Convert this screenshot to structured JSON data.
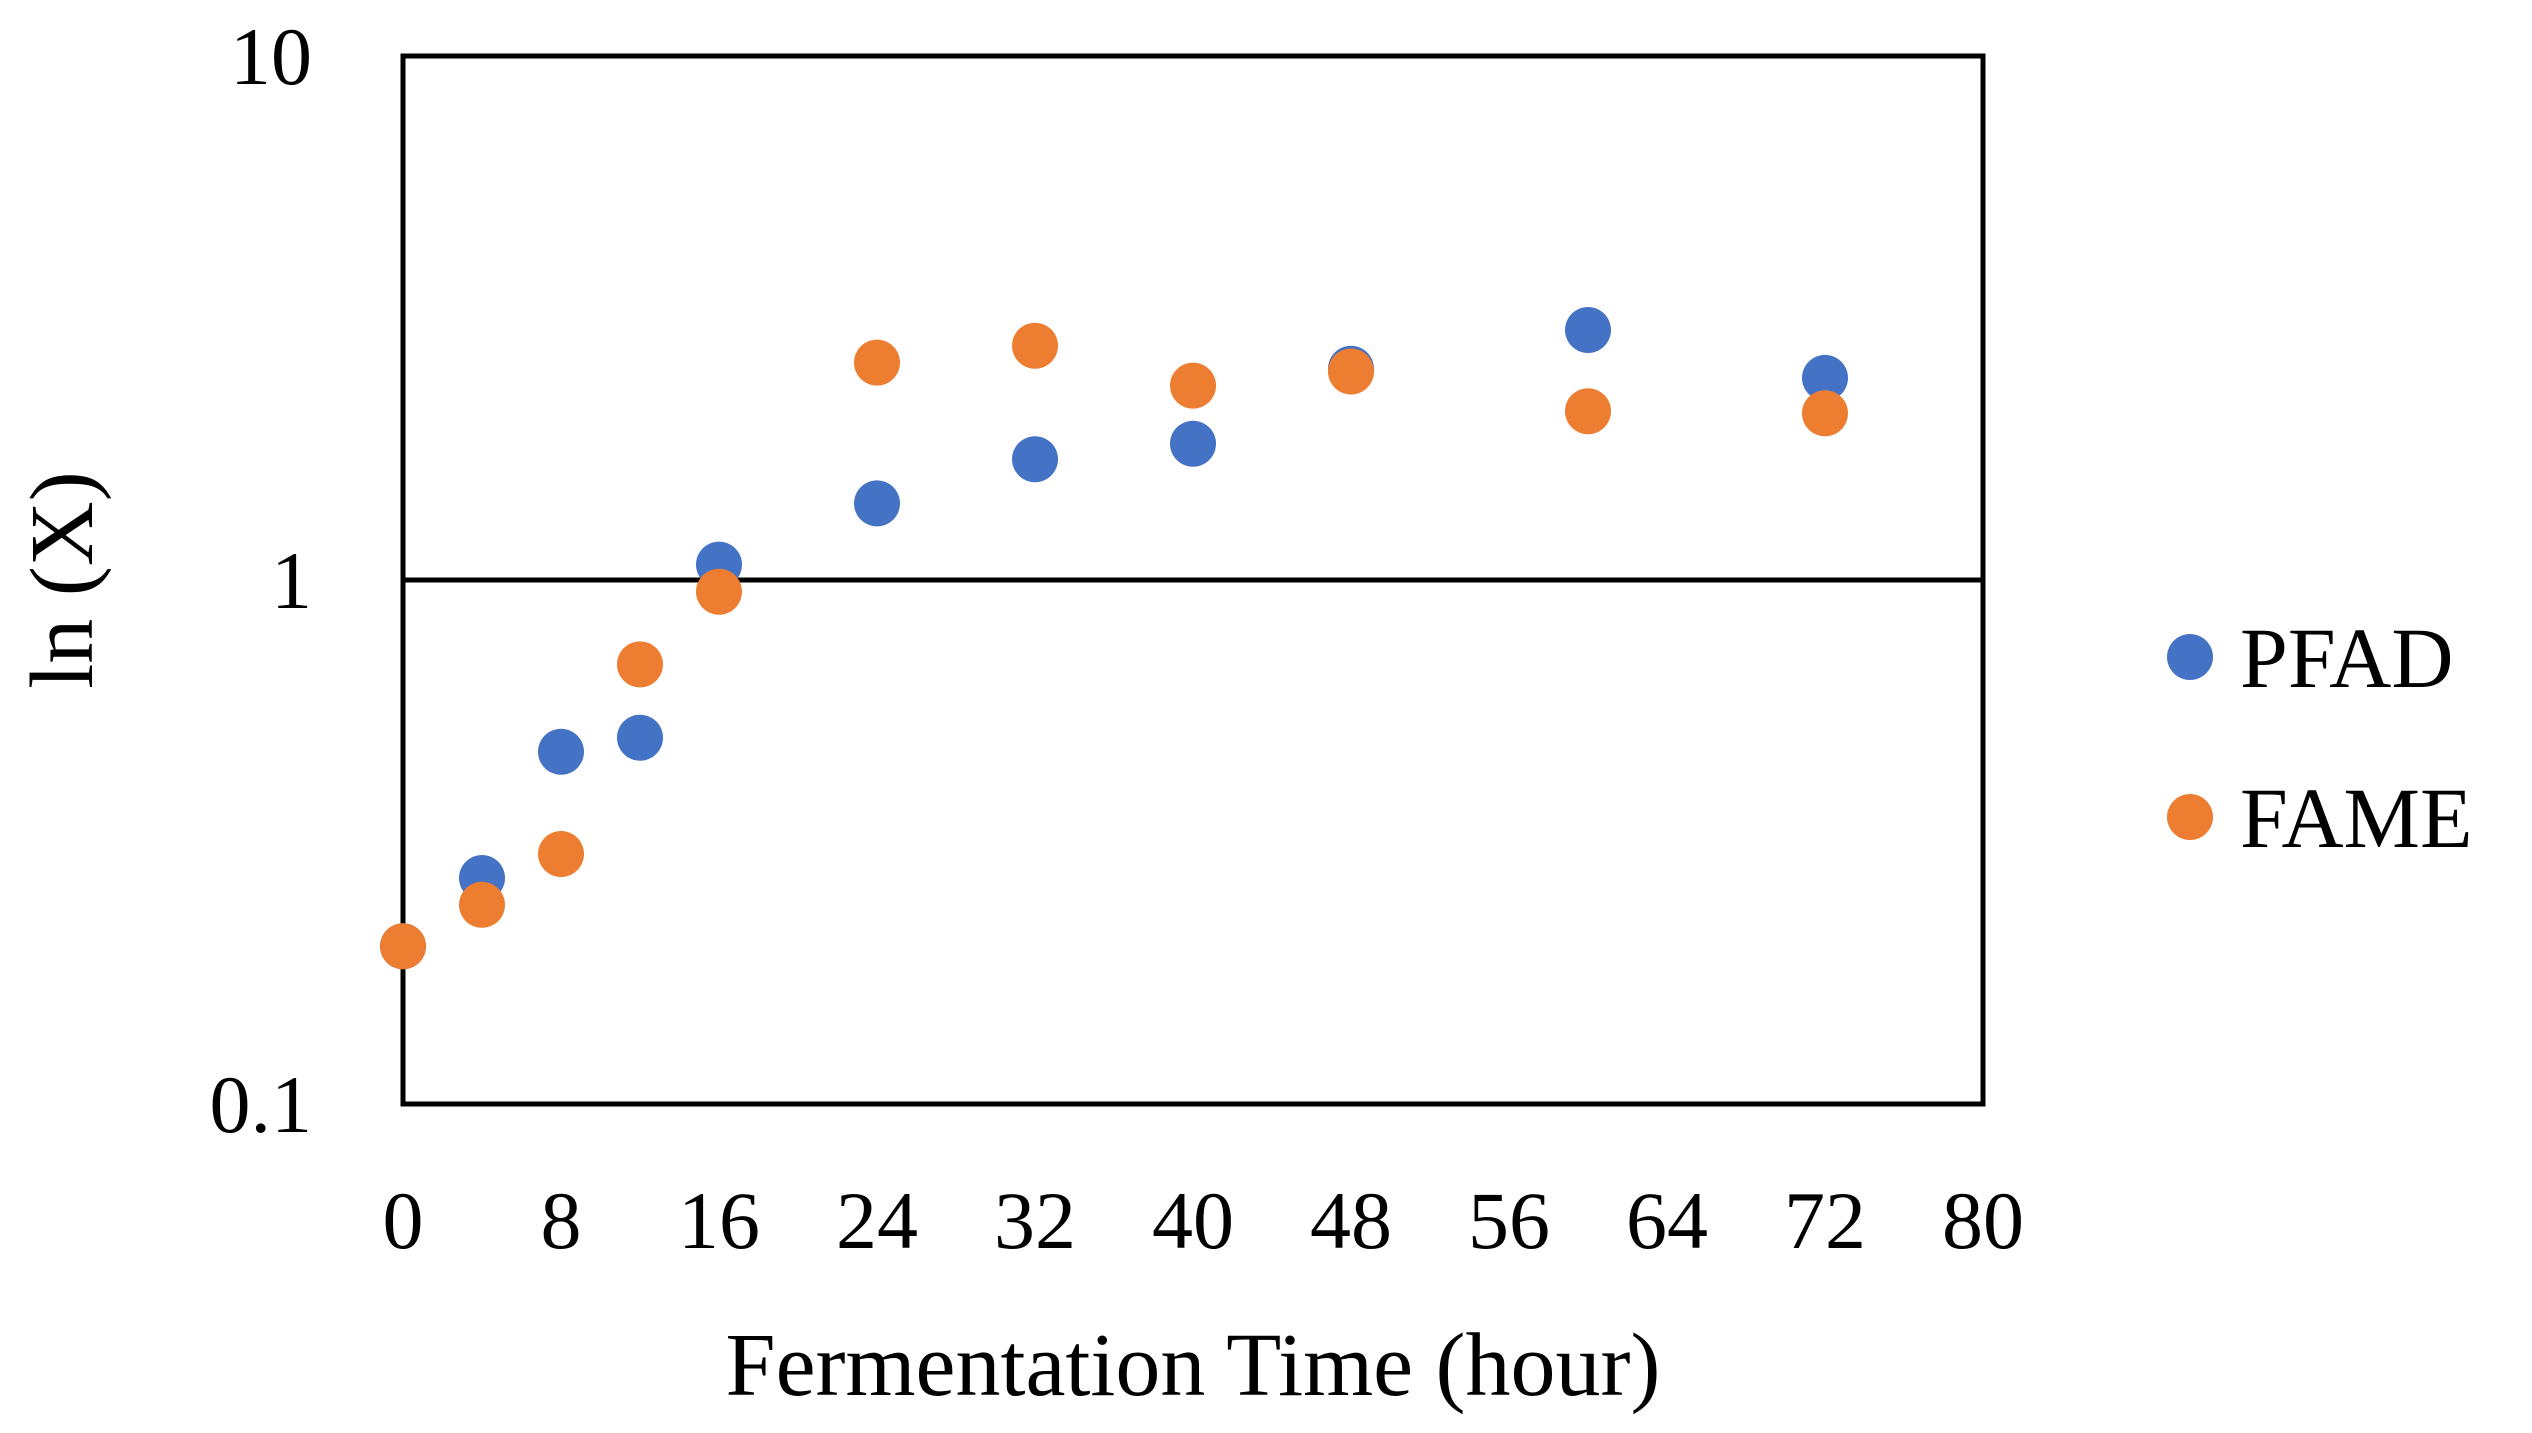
{
  "chart_data": {
    "type": "scatter",
    "title": "",
    "xlabel": "Fermentation Time (hour)",
    "ylabel": "ln (X)",
    "xlim": [
      0,
      80
    ],
    "ylim": [
      0.1,
      10
    ],
    "yscale": "log",
    "xticks": [
      "0",
      "8",
      "16",
      "24",
      "32",
      "40",
      "48",
      "56",
      "64",
      "72",
      "80"
    ],
    "yticks": [
      "0.1",
      "1",
      "10"
    ],
    "grid": "horizontal major gridline at 1",
    "legend_position": "right",
    "series": [
      {
        "name": "PFAD",
        "color": "#4472C4",
        "x": [
          0,
          4,
          8,
          12,
          16,
          24,
          32,
          40,
          48,
          60,
          72
        ],
        "y": [
          0.2,
          0.27,
          0.47,
          0.5,
          1.07,
          1.4,
          1.7,
          1.82,
          2.53,
          3.0,
          2.43
        ]
      },
      {
        "name": "FAME",
        "color": "#ED7D31",
        "x": [
          0,
          4,
          8,
          12,
          16,
          24,
          32,
          40,
          48,
          60,
          72
        ],
        "y": [
          0.2,
          0.24,
          0.3,
          0.69,
          0.95,
          2.6,
          2.8,
          2.35,
          2.5,
          2.1,
          2.08
        ]
      }
    ]
  }
}
